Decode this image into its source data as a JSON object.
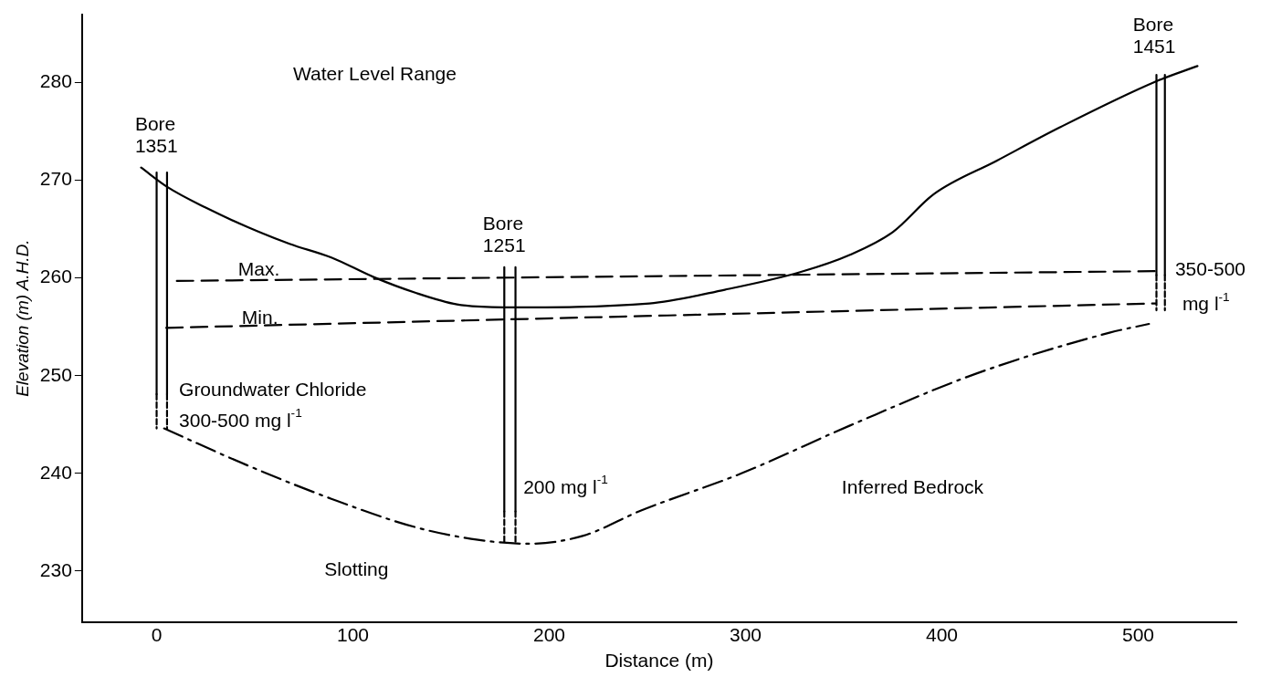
{
  "chart_data": {
    "type": "line",
    "xlabel": "Distance (m)",
    "ylabel": "Elevation (m) A.H.D.",
    "xlim": [
      -38,
      550
    ],
    "ylim": [
      224.8,
      287
    ],
    "xticks": [
      0,
      100,
      200,
      300,
      400,
      500
    ],
    "yticks": [
      230,
      240,
      250,
      260,
      270,
      280
    ],
    "grid": false,
    "legend": false,
    "marker": "none",
    "series": [
      {
        "color": "#000000",
        "line_style": "solid",
        "x": [
          -7.9,
          5.6,
          25,
          46.5,
          67.7,
          89,
          110.5,
          131.7,
          153,
          176.5,
          251,
          289.4,
          327.8,
          353.5,
          375,
          396,
          427.9,
          459.9,
          508.8,
          530.2
        ],
        "values": [
          271.3,
          269.3,
          267.2,
          265.2,
          263.5,
          262.1,
          260.1,
          258.5,
          257.3,
          257.0,
          257.4,
          258.8,
          260.6,
          262.4,
          264.7,
          268.6,
          272.0,
          275.4,
          280.1,
          281.7
        ]
      },
      {
        "color": "#000000",
        "line_style": "dashed",
        "x": [
          10.3,
          508.8
        ],
        "values": [
          259.7,
          260.7
        ]
      },
      {
        "color": "#000000",
        "line_style": "dashed",
        "x": [
          4.9,
          508.8
        ],
        "values": [
          254.9,
          257.4
        ]
      },
      {
        "color": "#000000",
        "line_style": "dashdot",
        "x": [
          3.8,
          46.5,
          89,
          131.7,
          163.7,
          189,
          217,
          246.8,
          297.9,
          353.2,
          417.3,
          485.4,
          505.5
        ],
        "values": [
          244.6,
          240.8,
          237.4,
          234.5,
          233.2,
          232.8,
          233.6,
          236.2,
          240.0,
          244.9,
          250.2,
          254.4,
          255.3
        ]
      },
      {
        "color": "#000000",
        "line_style": "solid",
        "x": [
          0,
          0
        ],
        "values": [
          270.8,
          248.1
        ]
      },
      {
        "color": "#000000",
        "line_style": "solid",
        "x": [
          5.3,
          5.3
        ],
        "values": [
          270.8,
          248.1
        ]
      },
      {
        "color": "#000000",
        "line_style": "solid",
        "x": [
          177.1,
          177.1
        ],
        "values": [
          261.1,
          236.1
        ]
      },
      {
        "color": "#000000",
        "line_style": "solid",
        "x": [
          182.8,
          182.8
        ],
        "values": [
          261.1,
          236.1
        ]
      },
      {
        "color": "#000000",
        "line_style": "solid",
        "x": [
          509.3,
          509.3
        ],
        "values": [
          280.8,
          260.3
        ]
      },
      {
        "color": "#000000",
        "line_style": "solid",
        "x": [
          513.6,
          513.6
        ],
        "values": [
          280.8,
          260.3
        ]
      },
      {
        "color": "#000000",
        "line_style": "dashed",
        "x": [
          0,
          0
        ],
        "values": [
          248.1,
          244.6
        ]
      },
      {
        "color": "#000000",
        "line_style": "dashed",
        "x": [
          5.3,
          5.3
        ],
        "values": [
          248.1,
          244.6
        ]
      },
      {
        "color": "#000000",
        "line_style": "dashed",
        "x": [
          177.1,
          177.1
        ],
        "values": [
          236.1,
          232.9
        ]
      },
      {
        "color": "#000000",
        "line_style": "dashed",
        "x": [
          182.8,
          182.8
        ],
        "values": [
          236.1,
          232.9
        ]
      },
      {
        "color": "#000000",
        "line_style": "dashed",
        "x": [
          509.3,
          509.3
        ],
        "values": [
          260.3,
          256.7
        ]
      },
      {
        "color": "#000000",
        "line_style": "dashed",
        "x": [
          513.6,
          513.6
        ],
        "values": [
          260.3,
          256.7
        ]
      }
    ],
    "annotations": [
      "Bore\n1351",
      "Bore\n1251",
      "Bore\n1451",
      "Water Level Range",
      "Max.",
      "Min.",
      "Groundwater Chloride",
      "300-500 mg l$^{-1}$",
      "200 mg l$^{-1}$",
      "350-500",
      "mg l$^{-1}$",
      "Slotting",
      "Inferred Bedrock"
    ]
  }
}
